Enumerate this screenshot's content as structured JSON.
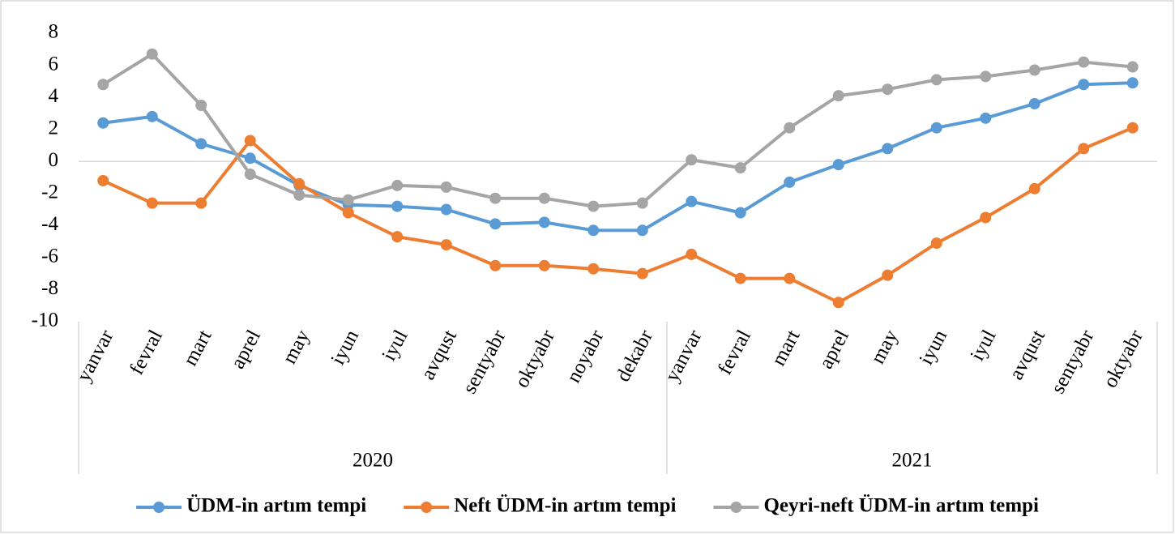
{
  "chart_data": {
    "type": "line",
    "category_groups": [
      {
        "name": "2020",
        "categories": [
          "yanvar",
          "fevral",
          "mart",
          "aprel",
          "may",
          "iyun",
          "iyul",
          "avqust",
          "sentyabr",
          "oktyabr",
          "noyabr",
          "dekabr"
        ]
      },
      {
        "name": "2021",
        "categories": [
          "yanvar",
          "fevral",
          "mart",
          "aprel",
          "may",
          "iyun",
          "iyul",
          "avqust",
          "sentyabr",
          "oktyabr"
        ]
      }
    ],
    "series": [
      {
        "name": "ÜDM-in artım tempi",
        "color": "#5b9bd5",
        "values": [
          2.4,
          2.8,
          1.1,
          0.2,
          -1.5,
          -2.7,
          -2.8,
          -3.0,
          -3.9,
          -3.8,
          -4.3,
          -4.3,
          -2.5,
          -3.2,
          -1.3,
          -0.2,
          0.8,
          2.1,
          2.7,
          3.6,
          4.8,
          4.9
        ]
      },
      {
        "name": "Neft ÜDM-in artım tempi",
        "color": "#ed7d31",
        "values": [
          -1.2,
          -2.6,
          -2.6,
          1.3,
          -1.4,
          -3.2,
          -4.7,
          -5.2,
          -6.5,
          -6.5,
          -6.7,
          -7.0,
          -5.8,
          -7.3,
          -7.3,
          -8.8,
          -7.1,
          -5.1,
          -3.5,
          -1.7,
          0.8,
          2.1
        ]
      },
      {
        "name": "Qeyri-neft ÜDM-in artım tempi",
        "color": "#a5a5a5",
        "values": [
          4.8,
          6.7,
          3.5,
          -0.8,
          -2.1,
          -2.4,
          -1.5,
          -1.6,
          -2.3,
          -2.3,
          -2.8,
          -2.6,
          0.1,
          -0.4,
          2.1,
          4.1,
          4.5,
          5.1,
          5.3,
          5.7,
          6.2,
          5.9
        ]
      }
    ],
    "ylim": [
      -10,
      8
    ],
    "yticks": [
      -10,
      -8,
      -6,
      -4,
      -2,
      0,
      2,
      4,
      6,
      8
    ],
    "legend": "bottom"
  }
}
